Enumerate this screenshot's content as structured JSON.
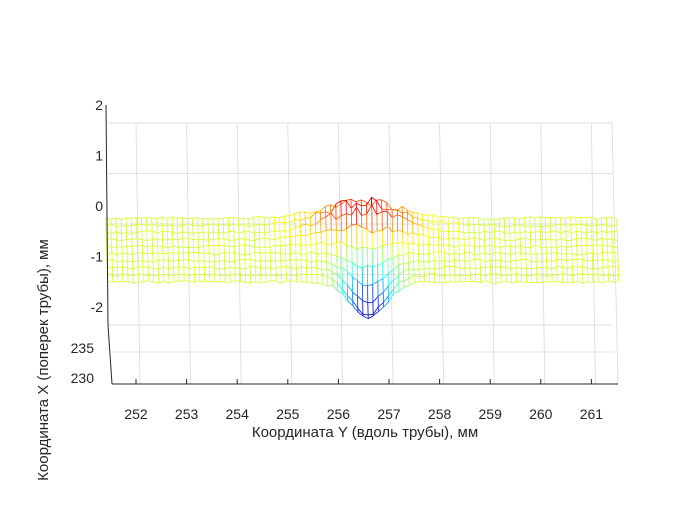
{
  "chart_data": {
    "type": "surface-mesh",
    "title": "",
    "xlabel": "Координата Y (вдоль трубы), мм",
    "ylabel": "Координата X (поперек трубы), мм",
    "zlabel": "",
    "x_ticks": [
      "252",
      "253",
      "254",
      "255",
      "256",
      "257",
      "258",
      "259",
      "260",
      "261"
    ],
    "y_ticks": [
      "230",
      "235"
    ],
    "z_ticks": [
      "2",
      "1",
      "0",
      "-1",
      "-2"
    ],
    "xlim": [
      251.4,
      261.5
    ],
    "zlim": [
      -2,
      2
    ],
    "grid": true,
    "colormap": "jet",
    "features": [
      {
        "name": "bump",
        "x_range": [
          255.0,
          258.0
        ],
        "z_peak": 0.2
      },
      {
        "name": "dent",
        "x_range": [
          255.9,
          257.2
        ],
        "z_min": -2.5
      }
    ]
  }
}
